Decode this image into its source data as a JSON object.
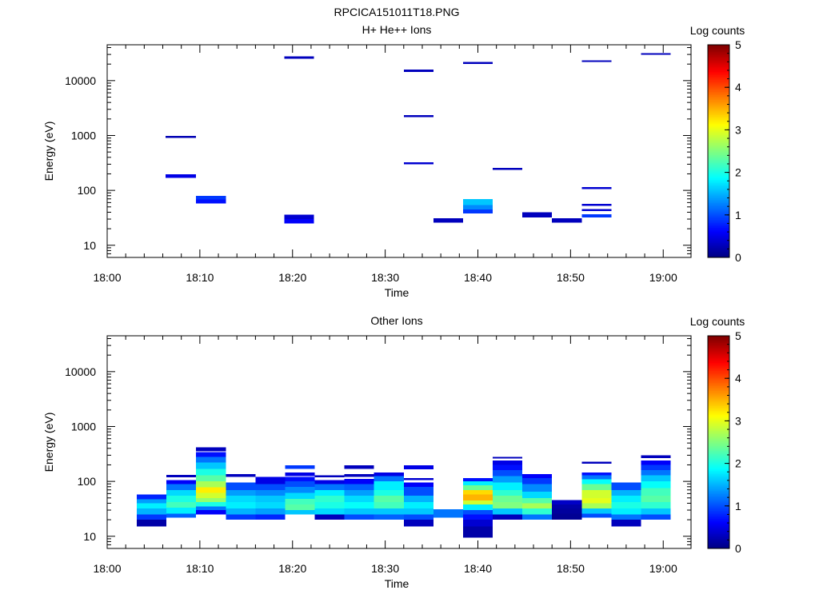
{
  "figure_title": "RPCICA151011T18.PNG",
  "chart_data": [
    {
      "type": "heatmap",
      "title": "H+ He++ Ions",
      "xlabel": "Time",
      "ylabel": "Energy (eV)",
      "x_ticks": [
        "18:00",
        "18:10",
        "18:20",
        "18:30",
        "18:40",
        "18:50",
        "19:00"
      ],
      "xlim_minutes": [
        0,
        63
      ],
      "y_scale": "log",
      "ylim": [
        6,
        45000
      ],
      "y_ticks": [
        10,
        100,
        1000,
        10000
      ],
      "y_tick_labels": [
        "10",
        "100",
        "1000",
        "10000"
      ],
      "colorbar": {
        "label": "Log counts",
        "range": [
          0,
          5
        ],
        "ticks": [
          "0",
          "1",
          "2",
          "3",
          "4",
          "5"
        ]
      },
      "cells": [
        {
          "t0": 6.3,
          "t1": 9.6,
          "e0": 900,
          "e1": 980,
          "log_counts": 0.25
        },
        {
          "t0": 6.3,
          "t1": 9.6,
          "e0": 170,
          "e1": 195,
          "log_counts": 0.5
        },
        {
          "t0": 9.6,
          "t1": 12.8,
          "e0": 58,
          "e1": 68,
          "log_counts": 0.7
        },
        {
          "t0": 9.6,
          "t1": 12.8,
          "e0": 68,
          "e1": 80,
          "log_counts": 0.9
        },
        {
          "t0": 19.1,
          "t1": 22.3,
          "e0": 25000,
          "e1": 27500,
          "log_counts": 0.3
        },
        {
          "t0": 19.1,
          "t1": 22.3,
          "e0": 25,
          "e1": 30,
          "log_counts": 0.6
        },
        {
          "t0": 19.1,
          "t1": 22.3,
          "e0": 30,
          "e1": 36,
          "log_counts": 0.4
        },
        {
          "t0": 32.0,
          "t1": 35.2,
          "e0": 14500,
          "e1": 16000,
          "log_counts": 0.3
        },
        {
          "t0": 32.0,
          "t1": 35.2,
          "e0": 2150,
          "e1": 2350,
          "log_counts": 0.3
        },
        {
          "t0": 32.0,
          "t1": 35.2,
          "e0": 300,
          "e1": 325,
          "log_counts": 0.4
        },
        {
          "t0": 35.2,
          "t1": 38.4,
          "e0": 26,
          "e1": 31,
          "log_counts": 0.3
        },
        {
          "t0": 38.4,
          "t1": 41.6,
          "e0": 20000,
          "e1": 21700,
          "log_counts": 0.3
        },
        {
          "t0": 38.4,
          "t1": 41.6,
          "e0": 54,
          "e1": 70,
          "log_counts": 1.6
        },
        {
          "t0": 38.4,
          "t1": 41.6,
          "e0": 45,
          "e1": 54,
          "log_counts": 1.3
        },
        {
          "t0": 38.4,
          "t1": 41.6,
          "e0": 38,
          "e1": 45,
          "log_counts": 0.9
        },
        {
          "t0": 41.6,
          "t1": 44.8,
          "e0": 235,
          "e1": 255,
          "log_counts": 0.3
        },
        {
          "t0": 44.8,
          "t1": 48.0,
          "e0": 32,
          "e1": 40,
          "log_counts": 0.3
        },
        {
          "t0": 48.0,
          "t1": 51.2,
          "e0": 26,
          "e1": 31,
          "log_counts": 0.3
        },
        {
          "t0": 51.2,
          "t1": 54.4,
          "e0": 22000,
          "e1": 23500,
          "log_counts": 0.3
        },
        {
          "t0": 51.2,
          "t1": 54.4,
          "e0": 105,
          "e1": 115,
          "log_counts": 0.4
        },
        {
          "t0": 51.2,
          "t1": 54.4,
          "e0": 52,
          "e1": 57,
          "log_counts": 0.4
        },
        {
          "t0": 51.2,
          "t1": 54.4,
          "e0": 42,
          "e1": 46,
          "log_counts": 0.4
        },
        {
          "t0": 51.2,
          "t1": 54.4,
          "e0": 32,
          "e1": 37,
          "log_counts": 0.9
        },
        {
          "t0": 57.6,
          "t1": 60.8,
          "e0": 29500,
          "e1": 31500,
          "log_counts": 0.3
        }
      ]
    },
    {
      "type": "heatmap",
      "title": "Other Ions",
      "xlabel": "Time",
      "ylabel": "Energy (eV)",
      "x_ticks": [
        "18:00",
        "18:10",
        "18:20",
        "18:30",
        "18:40",
        "18:50",
        "19:00"
      ],
      "xlim_minutes": [
        0,
        63
      ],
      "y_scale": "log",
      "ylim": [
        6,
        45000
      ],
      "y_ticks": [
        10,
        100,
        1000,
        10000
      ],
      "y_tick_labels": [
        "10",
        "100",
        "1000",
        "10000"
      ],
      "colorbar": {
        "label": "Log counts",
        "range": [
          0,
          5
        ],
        "ticks": [
          "0",
          "1",
          "2",
          "3",
          "4",
          "5"
        ]
      },
      "columns": [
        {
          "t0": 3.2,
          "t1": 6.4,
          "bins": [
            [
              15,
              20,
              0.2
            ],
            [
              20,
              25,
              0.9
            ],
            [
              25,
              32,
              1.5
            ],
            [
              32,
              40,
              1.8
            ],
            [
              40,
              47,
              1.4
            ],
            [
              47,
              58,
              0.8
            ]
          ]
        },
        {
          "t0": 6.4,
          "t1": 9.6,
          "bins": [
            [
              22,
              26,
              1.1
            ],
            [
              26,
              33,
              1.8
            ],
            [
              33,
              42,
              2.2
            ],
            [
              42,
              55,
              2.0
            ],
            [
              55,
              70,
              1.7
            ],
            [
              70,
              90,
              1.2
            ],
            [
              90,
              105,
              0.6
            ],
            [
              118,
              132,
              0.3
            ]
          ]
        },
        {
          "t0": 9.6,
          "t1": 12.8,
          "bins": [
            [
              25,
              30,
              0.6
            ],
            [
              30,
              35,
              1.2
            ],
            [
              35,
              42,
              2.0
            ],
            [
              42,
              50,
              2.6
            ],
            [
              50,
              62,
              2.9
            ],
            [
              62,
              78,
              3.2
            ],
            [
              78,
              100,
              2.7
            ],
            [
              100,
              130,
              2.3
            ],
            [
              130,
              170,
              2.0
            ],
            [
              170,
              220,
              1.6
            ],
            [
              220,
              280,
              1.2
            ],
            [
              280,
              340,
              0.7
            ],
            [
              355,
              420,
              0.3
            ]
          ]
        },
        {
          "t0": 12.8,
          "t1": 16.0,
          "bins": [
            [
              20,
              25,
              0.9
            ],
            [
              25,
              32,
              1.5
            ],
            [
              32,
              42,
              1.8
            ],
            [
              42,
              55,
              1.7
            ],
            [
              55,
              70,
              1.4
            ],
            [
              70,
              95,
              1.0
            ],
            [
              120,
              135,
              0.3
            ]
          ]
        },
        {
          "t0": 16.0,
          "t1": 19.2,
          "bins": [
            [
              20,
              25,
              0.8
            ],
            [
              25,
              32,
              1.4
            ],
            [
              32,
              42,
              1.7
            ],
            [
              42,
              55,
              1.6
            ],
            [
              55,
              70,
              1.3
            ],
            [
              70,
              90,
              1.0
            ],
            [
              90,
              120,
              0.5
            ]
          ]
        },
        {
          "t0": 19.2,
          "t1": 22.4,
          "bins": [
            [
              25,
              30,
              1.6
            ],
            [
              30,
              38,
              2.3
            ],
            [
              38,
              48,
              2.2
            ],
            [
              48,
              62,
              1.7
            ],
            [
              62,
              80,
              1.3
            ],
            [
              80,
              100,
              1.0
            ],
            [
              100,
              120,
              0.7
            ],
            [
              125,
              145,
              0.5
            ],
            [
              170,
              195,
              0.9
            ]
          ]
        },
        {
          "t0": 22.4,
          "t1": 25.6,
          "bins": [
            [
              20,
              25,
              0.3
            ],
            [
              25,
              32,
              1.7
            ],
            [
              32,
              42,
              2.0
            ],
            [
              42,
              55,
              2.1
            ],
            [
              55,
              70,
              1.8
            ],
            [
              70,
              90,
              1.2
            ],
            [
              90,
              105,
              0.5
            ],
            [
              118,
              130,
              0.3
            ]
          ]
        },
        {
          "t0": 25.6,
          "t1": 28.8,
          "bins": [
            [
              20,
              25,
              1.0
            ],
            [
              25,
              32,
              1.6
            ],
            [
              32,
              42,
              1.9
            ],
            [
              42,
              55,
              1.7
            ],
            [
              55,
              70,
              1.4
            ],
            [
              70,
              90,
              1.1
            ],
            [
              90,
              112,
              0.6
            ],
            [
              120,
              135,
              0.3
            ],
            [
              170,
              195,
              0.3
            ]
          ]
        },
        {
          "t0": 28.8,
          "t1": 32.0,
          "bins": [
            [
              20,
              25,
              1.1
            ],
            [
              25,
              32,
              1.6
            ],
            [
              32,
              42,
              2.2
            ],
            [
              42,
              55,
              2.3
            ],
            [
              55,
              70,
              2.0
            ],
            [
              70,
              100,
              1.8
            ],
            [
              100,
              125,
              1.2
            ],
            [
              125,
              145,
              0.5
            ]
          ]
        },
        {
          "t0": 32.0,
          "t1": 35.2,
          "bins": [
            [
              15,
              20,
              0.3
            ],
            [
              20,
              25,
              1.0
            ],
            [
              25,
              32,
              1.6
            ],
            [
              32,
              42,
              1.8
            ],
            [
              42,
              55,
              1.5
            ],
            [
              55,
              80,
              1.0
            ],
            [
              80,
              95,
              0.6
            ],
            [
              105,
              115,
              0.4
            ],
            [
              165,
              195,
              0.5
            ]
          ]
        },
        {
          "t0": 35.2,
          "t1": 38.4,
          "bins": [
            [
              22,
              31,
              1.2
            ]
          ]
        },
        {
          "t0": 38.4,
          "t1": 41.6,
          "bins": [
            [
              9.5,
              15,
              0.2
            ],
            [
              15,
              20,
              0.4
            ],
            [
              20,
              25,
              0.7
            ],
            [
              25,
              30,
              1.0
            ],
            [
              30,
              38,
              1.8
            ],
            [
              38,
              45,
              2.9
            ],
            [
              45,
              58,
              3.5
            ],
            [
              58,
              70,
              3.3
            ],
            [
              70,
              85,
              2.4
            ],
            [
              85,
              100,
              1.8
            ],
            [
              100,
              115,
              0.7
            ]
          ]
        },
        {
          "t0": 41.6,
          "t1": 44.8,
          "bins": [
            [
              20,
              25,
              0.3
            ],
            [
              25,
              32,
              1.6
            ],
            [
              32,
              42,
              2.5
            ],
            [
              42,
              55,
              2.4
            ],
            [
              55,
              70,
              2.1
            ],
            [
              70,
              95,
              1.8
            ],
            [
              95,
              125,
              1.4
            ],
            [
              125,
              160,
              1.0
            ],
            [
              160,
              200,
              0.7
            ],
            [
              200,
              240,
              0.5
            ],
            [
              260,
              280,
              0.3
            ]
          ]
        },
        {
          "t0": 44.8,
          "t1": 48.0,
          "bins": [
            [
              20,
              25,
              1.2
            ],
            [
              25,
              32,
              2.1
            ],
            [
              32,
              40,
              2.7
            ],
            [
              40,
              50,
              2.3
            ],
            [
              50,
              65,
              1.7
            ],
            [
              65,
              90,
              1.3
            ],
            [
              90,
              115,
              0.9
            ],
            [
              115,
              135,
              0.6
            ]
          ]
        },
        {
          "t0": 48.0,
          "t1": 51.2,
          "bins": [
            [
              20,
              26,
              0.1
            ],
            [
              26,
              32,
              0.15
            ],
            [
              32,
              38,
              0.2
            ],
            [
              38,
              46,
              0.35
            ]
          ]
        },
        {
          "t0": 51.2,
          "t1": 54.4,
          "bins": [
            [
              22,
              26,
              1.0
            ],
            [
              26,
              32,
              1.6
            ],
            [
              32,
              40,
              2.7
            ],
            [
              40,
              50,
              3.0
            ],
            [
              50,
              70,
              2.9
            ],
            [
              70,
              90,
              2.4
            ],
            [
              90,
              110,
              1.9
            ],
            [
              110,
              130,
              1.2
            ],
            [
              130,
              145,
              0.7
            ],
            [
              210,
              230,
              0.3
            ]
          ]
        },
        {
          "t0": 54.4,
          "t1": 57.6,
          "bins": [
            [
              15,
              20,
              0.3
            ],
            [
              20,
              25,
              1.2
            ],
            [
              25,
              32,
              1.8
            ],
            [
              32,
              42,
              2.0
            ],
            [
              42,
              55,
              1.8
            ],
            [
              55,
              70,
              1.5
            ],
            [
              70,
              95,
              1.0
            ]
          ]
        },
        {
          "t0": 57.6,
          "t1": 60.8,
          "bins": [
            [
              20,
              25,
              1.0
            ],
            [
              25,
              32,
              1.6
            ],
            [
              32,
              42,
              2.1
            ],
            [
              42,
              55,
              2.3
            ],
            [
              55,
              75,
              2.2
            ],
            [
              75,
              100,
              1.9
            ],
            [
              100,
              130,
              1.6
            ],
            [
              130,
              160,
              1.2
            ],
            [
              160,
              200,
              0.9
            ],
            [
              200,
              240,
              0.6
            ],
            [
              265,
              300,
              0.3
            ]
          ]
        }
      ]
    }
  ]
}
